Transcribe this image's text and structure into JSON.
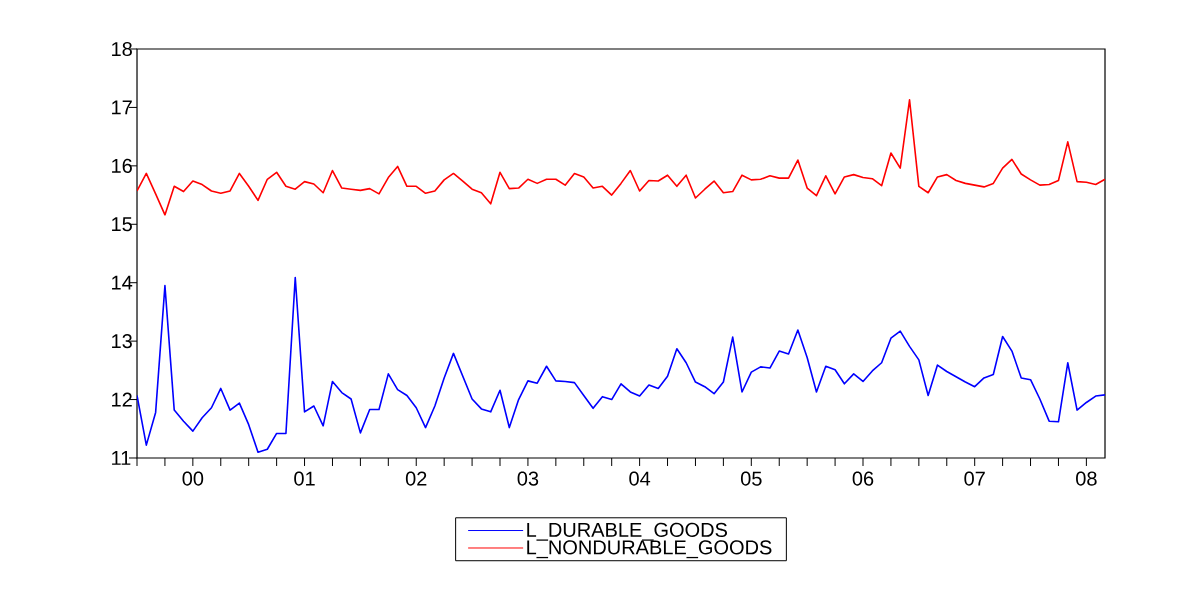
{
  "chart_data": {
    "type": "line",
    "x": [
      "2000-01",
      "2000-02",
      "2000-03",
      "2000-04",
      "2000-05",
      "2000-06",
      "2000-07",
      "2000-08",
      "2000-09",
      "2000-10",
      "2000-11",
      "2000-12",
      "2001-01",
      "2001-02",
      "2001-03",
      "2001-04",
      "2001-05",
      "2001-06",
      "2001-07",
      "2001-08",
      "2001-09",
      "2001-10",
      "2001-11",
      "2001-12",
      "2002-01",
      "2002-02",
      "2002-03",
      "2002-04",
      "2002-05",
      "2002-06",
      "2002-07",
      "2002-08",
      "2002-09",
      "2002-10",
      "2002-11",
      "2002-12",
      "2003-01",
      "2003-02",
      "2003-03",
      "2003-04",
      "2003-05",
      "2003-06",
      "2003-07",
      "2003-08",
      "2003-09",
      "2003-10",
      "2003-11",
      "2003-12",
      "2004-01",
      "2004-02",
      "2004-03",
      "2004-04",
      "2004-05",
      "2004-06",
      "2004-07",
      "2004-08",
      "2004-09",
      "2004-10",
      "2004-11",
      "2004-12",
      "2005-01",
      "2005-02",
      "2005-03",
      "2005-04",
      "2005-05",
      "2005-06",
      "2005-07",
      "2005-08",
      "2005-09",
      "2005-10",
      "2005-11",
      "2005-12",
      "2006-01",
      "2006-02",
      "2006-03",
      "2006-04",
      "2006-05",
      "2006-06",
      "2006-07",
      "2006-08",
      "2006-09",
      "2006-10",
      "2006-11",
      "2006-12",
      "2007-01",
      "2007-02",
      "2007-03",
      "2007-04",
      "2007-05",
      "2007-06",
      "2007-07",
      "2007-08",
      "2007-09",
      "2007-10",
      "2007-11",
      "2007-12",
      "2008-01",
      "2008-02",
      "2008-03",
      "2008-04",
      "2008-05",
      "2008-06",
      "2008-07",
      "2008-08",
      "2008-09"
    ],
    "series": [
      {
        "name": "L_DURABLE_GOODS",
        "color": "#0000ff",
        "values": [
          12.07,
          11.22,
          11.78,
          13.95,
          11.82,
          11.63,
          11.46,
          11.69,
          11.86,
          12.19,
          11.82,
          11.94,
          11.57,
          11.1,
          11.15,
          11.42,
          11.42,
          14.09,
          11.79,
          11.89,
          11.55,
          12.31,
          12.12,
          12.01,
          11.43,
          11.83,
          11.83,
          12.44,
          12.17,
          12.07,
          11.86,
          11.52,
          11.89,
          12.37,
          12.79,
          12.4,
          12.01,
          11.84,
          11.79,
          12.16,
          11.52,
          12.0,
          12.32,
          12.28,
          12.57,
          12.32,
          12.31,
          12.29,
          12.07,
          11.85,
          12.05,
          12.0,
          12.27,
          12.13,
          12.06,
          12.25,
          12.19,
          12.4,
          12.87,
          12.63,
          12.3,
          12.22,
          12.1,
          12.3,
          13.07,
          12.13,
          12.47,
          12.56,
          12.54,
          12.83,
          12.78,
          13.19,
          12.72,
          12.13,
          12.57,
          12.51,
          12.27,
          12.44,
          12.31,
          12.49,
          12.63,
          13.05,
          13.17,
          12.91,
          12.68,
          12.07,
          12.59,
          12.48,
          12.39,
          12.3,
          12.22,
          12.37,
          12.43,
          13.08,
          12.83,
          12.37,
          12.34,
          12.01,
          11.63,
          11.62,
          12.63,
          11.82,
          11.95,
          12.06,
          12.08
        ]
      },
      {
        "name": "L_NONDURABLE_GOODS",
        "color": "#ff0000",
        "values": [
          15.57,
          15.87,
          15.52,
          15.16,
          15.65,
          15.56,
          15.74,
          15.68,
          15.57,
          15.53,
          15.57,
          15.87,
          15.65,
          15.41,
          15.77,
          15.89,
          15.65,
          15.6,
          15.73,
          15.69,
          15.54,
          15.92,
          15.62,
          15.6,
          15.58,
          15.61,
          15.52,
          15.8,
          15.99,
          15.65,
          15.65,
          15.53,
          15.57,
          15.76,
          15.87,
          15.74,
          15.6,
          15.54,
          15.35,
          15.89,
          15.61,
          15.62,
          15.77,
          15.7,
          15.77,
          15.77,
          15.67,
          15.87,
          15.81,
          15.62,
          15.65,
          15.5,
          15.7,
          15.92,
          15.57,
          15.75,
          15.74,
          15.84,
          15.65,
          15.84,
          15.45,
          15.6,
          15.74,
          15.54,
          15.56,
          15.84,
          15.76,
          15.77,
          15.83,
          15.79,
          15.79,
          16.1,
          15.62,
          15.49,
          15.83,
          15.52,
          15.81,
          15.85,
          15.8,
          15.78,
          15.66,
          16.22,
          15.96,
          17.13,
          15.65,
          15.54,
          15.81,
          15.85,
          15.75,
          15.7,
          15.67,
          15.64,
          15.7,
          15.96,
          16.11,
          15.86,
          15.76,
          15.67,
          15.68,
          15.75,
          16.41,
          15.73,
          15.72,
          15.68,
          15.77
        ]
      }
    ],
    "xlim": [
      "2000-01",
      "2008-09"
    ],
    "xticks": [
      {
        "value": "2000-01",
        "label": null
      },
      {
        "value": "2000-04",
        "label": null
      },
      {
        "value": "2000-07",
        "label": "00"
      },
      {
        "value": "2000-10",
        "label": null
      },
      {
        "value": "2001-01",
        "label": null
      },
      {
        "value": "2001-04",
        "label": null
      },
      {
        "value": "2001-07",
        "label": "01"
      },
      {
        "value": "2001-10",
        "label": null
      },
      {
        "value": "2002-01",
        "label": null
      },
      {
        "value": "2002-04",
        "label": null
      },
      {
        "value": "2002-07",
        "label": "02"
      },
      {
        "value": "2002-10",
        "label": null
      },
      {
        "value": "2003-01",
        "label": null
      },
      {
        "value": "2003-04",
        "label": null
      },
      {
        "value": "2003-07",
        "label": "03"
      },
      {
        "value": "2003-10",
        "label": null
      },
      {
        "value": "2004-01",
        "label": null
      },
      {
        "value": "2004-04",
        "label": null
      },
      {
        "value": "2004-07",
        "label": "04"
      },
      {
        "value": "2004-10",
        "label": null
      },
      {
        "value": "2005-01",
        "label": null
      },
      {
        "value": "2005-04",
        "label": null
      },
      {
        "value": "2005-07",
        "label": "05"
      },
      {
        "value": "2005-10",
        "label": null
      },
      {
        "value": "2006-01",
        "label": null
      },
      {
        "value": "2006-04",
        "label": null
      },
      {
        "value": "2006-07",
        "label": "06"
      },
      {
        "value": "2006-10",
        "label": null
      },
      {
        "value": "2007-01",
        "label": null
      },
      {
        "value": "2007-04",
        "label": null
      },
      {
        "value": "2007-07",
        "label": "07"
      },
      {
        "value": "2007-10",
        "label": null
      },
      {
        "value": "2008-01",
        "label": null
      },
      {
        "value": "2008-04",
        "label": null
      },
      {
        "value": "2008-07",
        "label": "08"
      }
    ],
    "ylim": [
      11,
      18
    ],
    "yticks": [
      11,
      12,
      13,
      14,
      15,
      16,
      17,
      18
    ],
    "legend": "bottom"
  }
}
